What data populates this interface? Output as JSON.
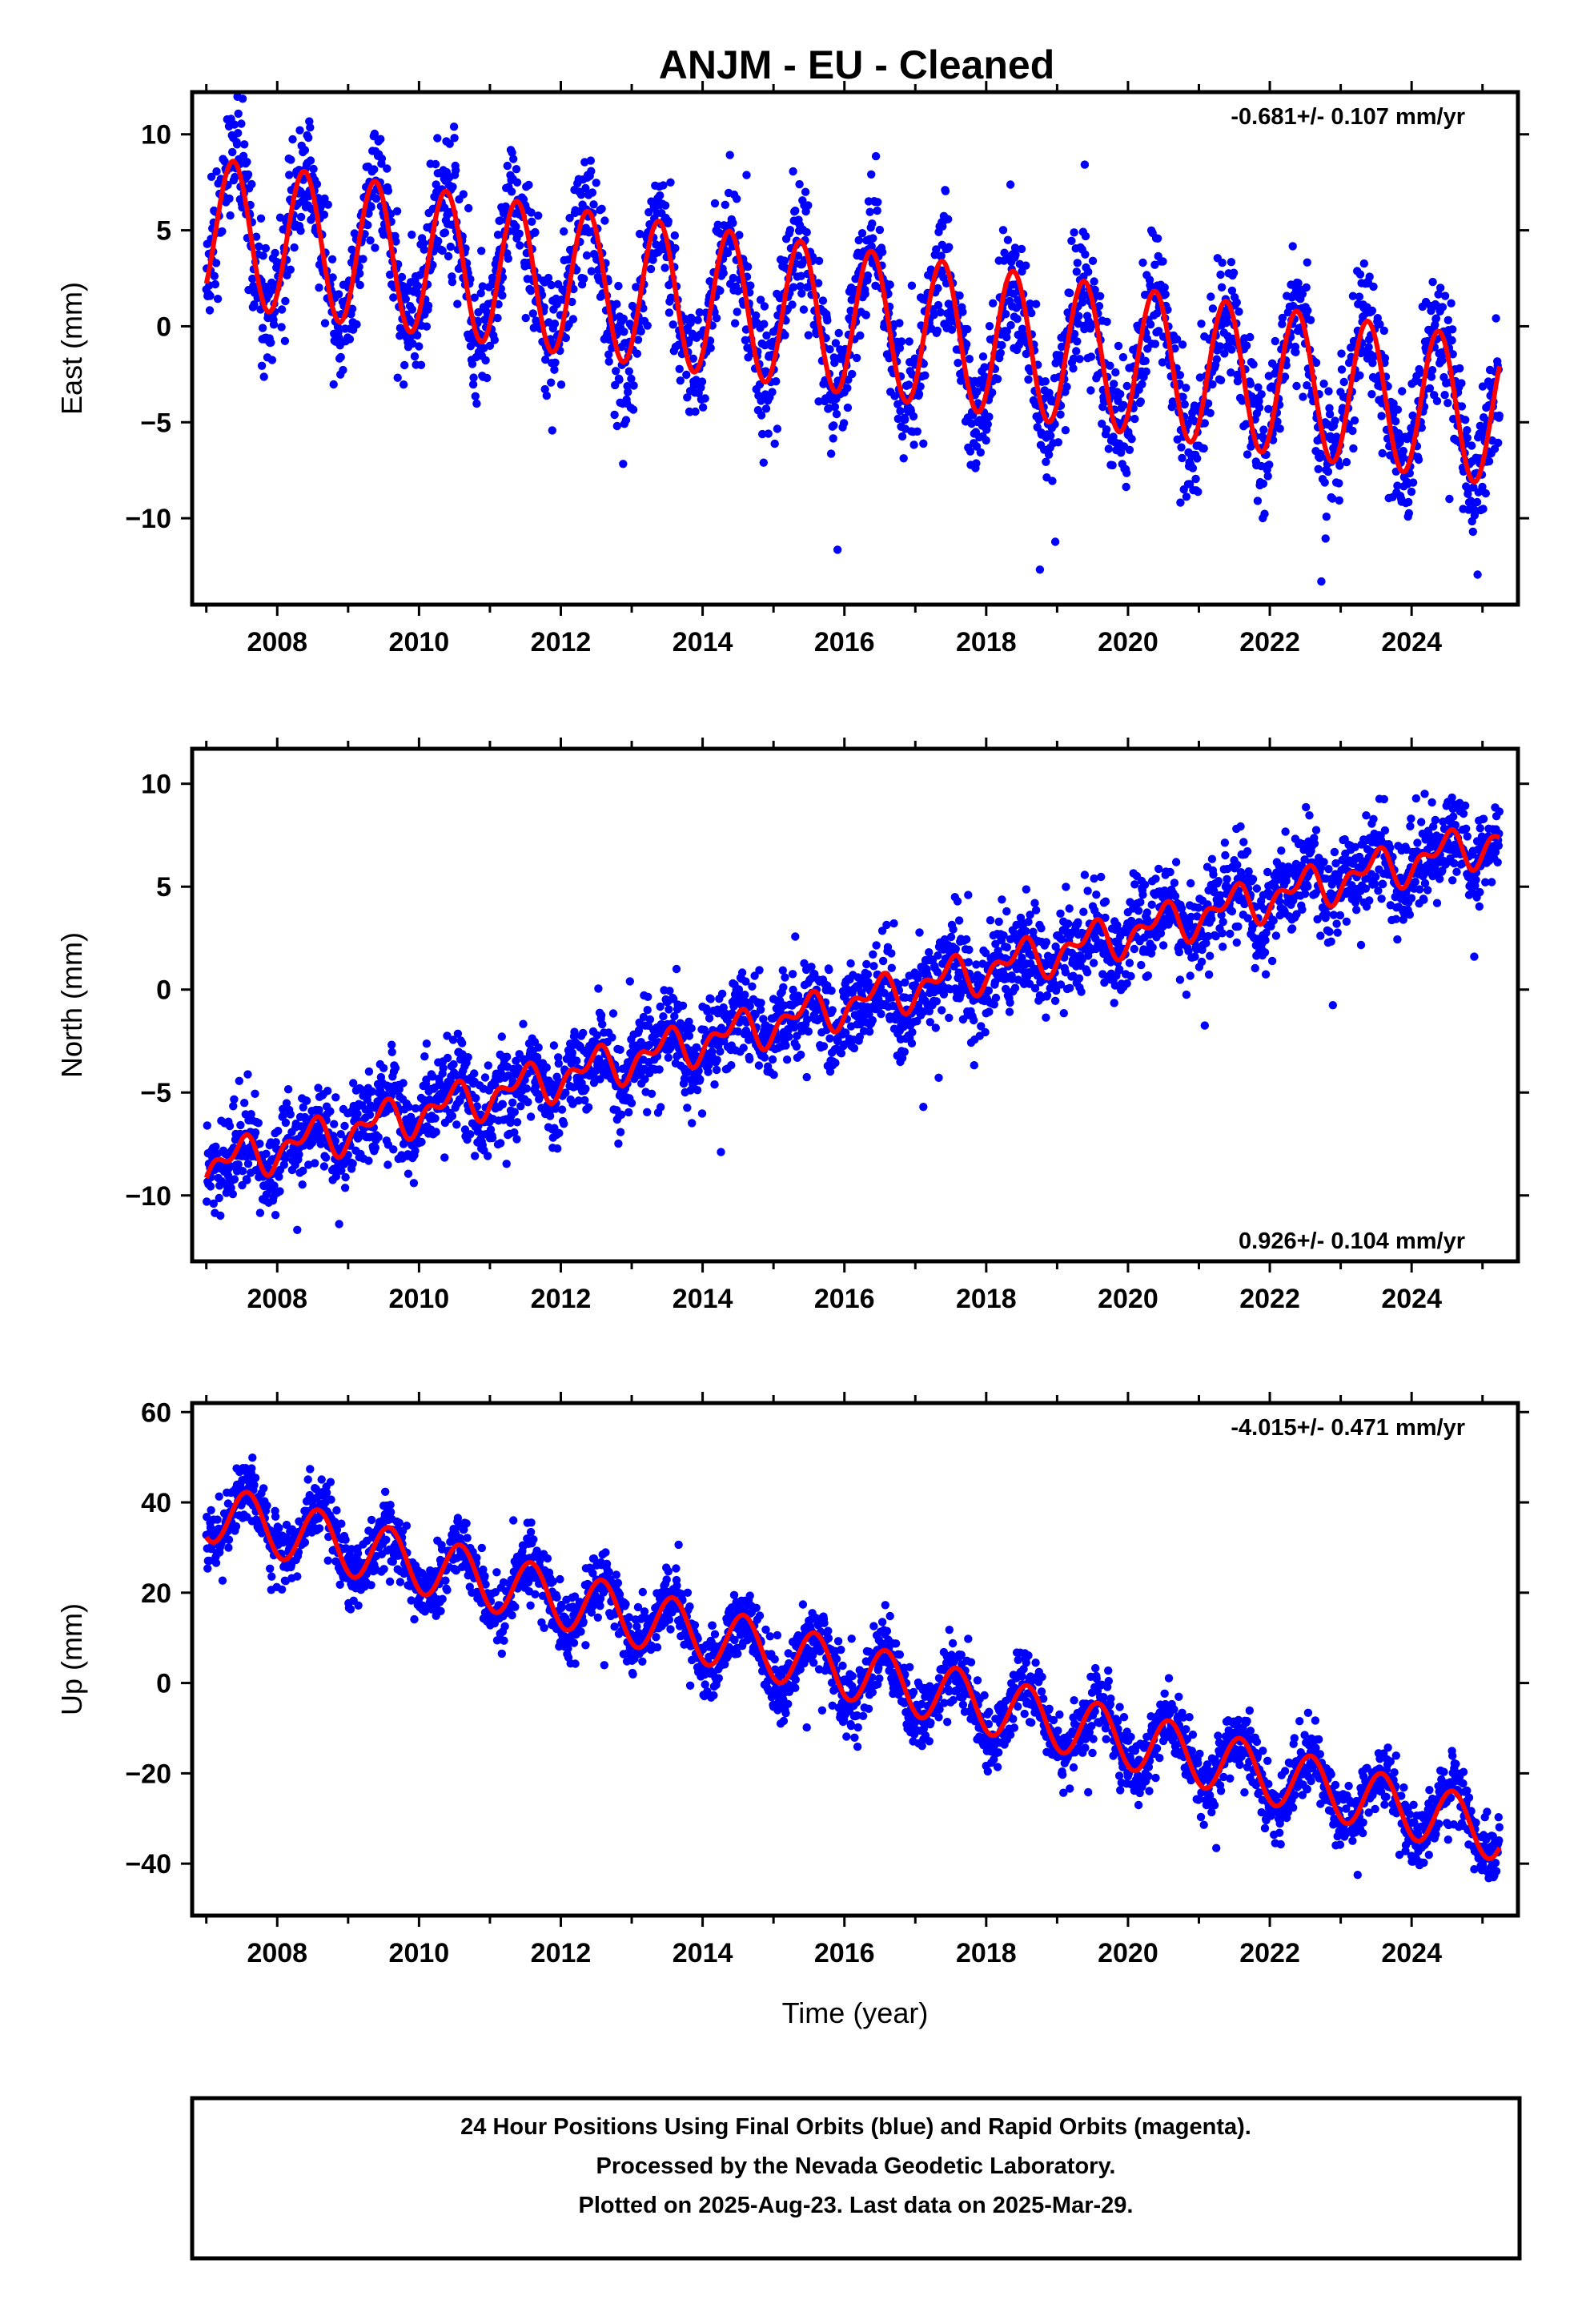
{
  "title": "ANJM  - EU - Cleaned",
  "footer": {
    "lines": [
      "24 Hour Positions Using Final Orbits (blue) and Rapid Orbits (magenta).",
      "Processed by the Nevada Geodetic Laboratory.",
      "Plotted on 2025-Aug-23. Last data on 2025-Mar-29."
    ]
  },
  "colors": {
    "data": "#0000ff",
    "model": "#ff0000",
    "axis": "#000000"
  },
  "chart_data": [
    {
      "type": "scatter",
      "component": "East",
      "ylabel": "East (mm)",
      "xlabel": "",
      "xlim": [
        2006.8,
        2025.5
      ],
      "ylim": [
        -14.5,
        12.2
      ],
      "xticks": [
        2008,
        2010,
        2012,
        2014,
        2016,
        2018,
        2020,
        2022,
        2024
      ],
      "yticks": [
        -10,
        -5,
        0,
        5,
        10
      ],
      "yticklabels": [
        "−10",
        "−5",
        "0",
        "5",
        "10"
      ],
      "rate_label": "-0.681+/- 0.107 mm/yr",
      "rate_position": "top-right",
      "data_range": [
        2007.0,
        2025.24
      ],
      "model": {
        "offset": 5.0,
        "trend_start_value": 5.0,
        "end_value": -4.5,
        "annual_amplitude": 3.8,
        "peak_phase": 0.38,
        "noise_sd": 1.6
      },
      "series": [
        {
          "name": "",
          "kind": "points",
          "color": "#0000ff",
          "x_range": [
            2007.0,
            2025.24
          ]
        },
        {
          "name": "",
          "kind": "fit",
          "color": "#ff0000",
          "x_range": [
            2007.0,
            2025.24
          ]
        }
      ]
    },
    {
      "type": "scatter",
      "component": "North",
      "ylabel": "North (mm)",
      "xlabel": "",
      "xlim": [
        2006.8,
        2025.5
      ],
      "ylim": [
        -13.2,
        11.7
      ],
      "xticks": [
        2008,
        2010,
        2012,
        2014,
        2016,
        2018,
        2020,
        2022,
        2024
      ],
      "yticks": [
        -10,
        -5,
        0,
        5,
        10
      ],
      "yticklabels": [
        "−10",
        "−5",
        "0",
        "5",
        "10"
      ],
      "rate_label": "0.926+/- 0.104 mm/yr",
      "rate_position": "bottom-right",
      "data_range": [
        2007.0,
        2025.24
      ],
      "model": {
        "start_value": -8.6,
        "end_value": 7.3,
        "annual_amplitude": 0.75,
        "semiannual_amplitude": 0.55,
        "noise_sd": 1.1
      },
      "series": [
        {
          "name": "",
          "kind": "points",
          "color": "#0000ff",
          "x_range": [
            2007.0,
            2025.24
          ]
        },
        {
          "name": "",
          "kind": "fit",
          "color": "#ff0000",
          "x_range": [
            2007.0,
            2025.24
          ]
        }
      ]
    },
    {
      "type": "scatter",
      "component": "Up",
      "ylabel": "Up (mm)",
      "xlabel": "Time (year)",
      "xlim": [
        2006.8,
        2025.5
      ],
      "ylim": [
        -51.5,
        62.0
      ],
      "xticks": [
        2008,
        2010,
        2012,
        2014,
        2016,
        2018,
        2020,
        2022,
        2024
      ],
      "yticks": [
        -40,
        -20,
        0,
        20,
        40,
        60
      ],
      "yticklabels": [
        "−40",
        "−20",
        "0",
        "20",
        "40",
        "60"
      ],
      "rate_label": "-4.015+/- 0.471 mm/yr",
      "rate_position": "top-right",
      "data_range": [
        2007.0,
        2025.24
      ],
      "model": {
        "start_value": 38.0,
        "end_value": -33.0,
        "annual_amplitude": 6.5,
        "noise_sd": 3.6
      },
      "series": [
        {
          "name": "",
          "kind": "points",
          "color": "#0000ff",
          "x_range": [
            2007.0,
            2025.24
          ]
        },
        {
          "name": "",
          "kind": "fit",
          "color": "#ff0000",
          "x_range": [
            2007.0,
            2025.24
          ]
        }
      ]
    }
  ]
}
